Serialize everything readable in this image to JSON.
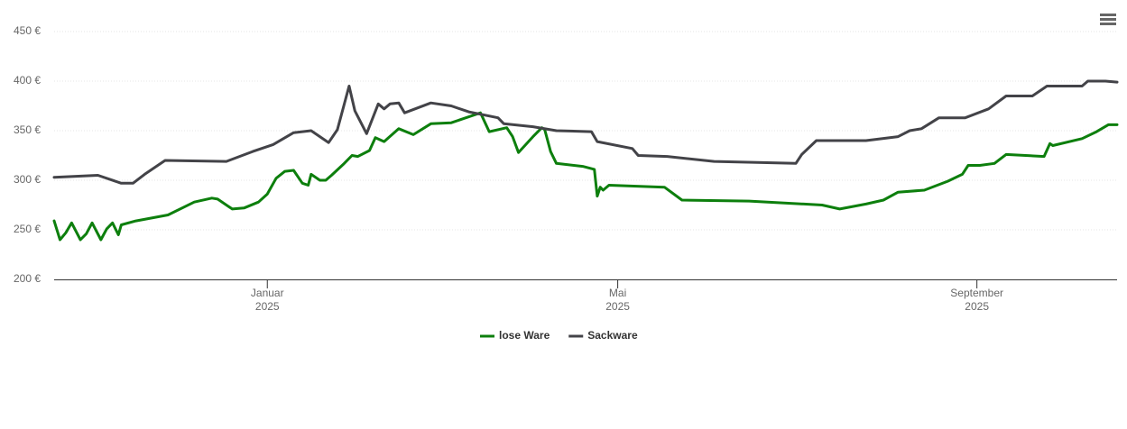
{
  "chart_data": {
    "type": "line",
    "xlim": [
      "2024-10-20",
      "2025-10-19"
    ],
    "ylim": [
      200,
      450
    ],
    "yticks": [
      {
        "value": 200,
        "label": "200 €"
      },
      {
        "value": 250,
        "label": "250 €"
      },
      {
        "value": 300,
        "label": "300 €"
      },
      {
        "value": 350,
        "label": "350 €"
      },
      {
        "value": 400,
        "label": "400 €"
      },
      {
        "value": 450,
        "label": "450 €"
      }
    ],
    "xticks": [
      {
        "value": "2025-01-01",
        "label": [
          "Januar",
          "2025"
        ]
      },
      {
        "value": "2025-05-01",
        "label": [
          "Mai",
          "2025"
        ]
      },
      {
        "value": "2025-09-01",
        "label": [
          "September",
          "2025"
        ]
      }
    ],
    "grid": true,
    "legend": "bottom",
    "series": [
      {
        "name": "lose Ware",
        "color": "#0d7f0d",
        "x": [
          "2024-10-20",
          "2024-10-22",
          "2024-10-24",
          "2024-10-26",
          "2024-10-29",
          "2024-10-31",
          "2024-11-02",
          "2024-11-05",
          "2024-11-07",
          "2024-11-09",
          "2024-11-11",
          "2024-11-12",
          "2024-11-17",
          "2024-11-28",
          "2024-12-07",
          "2024-12-13",
          "2024-12-15",
          "2024-12-20",
          "2024-12-24",
          "2024-12-29",
          "2025-01-01",
          "2025-01-04",
          "2025-01-07",
          "2025-01-10",
          "2025-01-13",
          "2025-01-15",
          "2025-01-16",
          "2025-01-19",
          "2025-01-21",
          "2025-01-23",
          "2025-01-27",
          "2025-01-30",
          "2025-02-01",
          "2025-02-05",
          "2025-02-07",
          "2025-02-10",
          "2025-02-15",
          "2025-02-20",
          "2025-02-26",
          "2025-03-05",
          "2025-03-10",
          "2025-03-15",
          "2025-03-18",
          "2025-03-24",
          "2025-03-26",
          "2025-03-28",
          "2025-04-02",
          "2025-04-05",
          "2025-04-06",
          "2025-04-08",
          "2025-04-10",
          "2025-04-19",
          "2025-04-23",
          "2025-04-24",
          "2025-04-25",
          "2025-04-26",
          "2025-04-28",
          "2025-05-17",
          "2025-05-23",
          "2025-06-15",
          "2025-07-10",
          "2025-07-16",
          "2025-07-25",
          "2025-07-31",
          "2025-08-05",
          "2025-08-14",
          "2025-08-22",
          "2025-08-27",
          "2025-08-29",
          "2025-09-02",
          "2025-09-07",
          "2025-09-11",
          "2025-09-24",
          "2025-09-26",
          "2025-09-27",
          "2025-10-07",
          "2025-10-12",
          "2025-10-16",
          "2025-10-19"
        ],
        "values": [
          259,
          240,
          247,
          257,
          240,
          246,
          257,
          240,
          251,
          257,
          245,
          255,
          259,
          265,
          278,
          282,
          281,
          271,
          272,
          278,
          286,
          302,
          309,
          310,
          297,
          295,
          306,
          300,
          300,
          305,
          316,
          325,
          324,
          330,
          343,
          339,
          352,
          346,
          357,
          358,
          363,
          368,
          349,
          353,
          344,
          328,
          344,
          353,
          351,
          329,
          317,
          314,
          311,
          284,
          293,
          290,
          295,
          293,
          280,
          279,
          275,
          271,
          276,
          280,
          288,
          290,
          299,
          306,
          315,
          315,
          317,
          326,
          324,
          337,
          335,
          342,
          349,
          356,
          356
        ]
      },
      {
        "name": "Sackware",
        "color": "#434348",
        "x": [
          "2024-10-20",
          "2024-11-04",
          "2024-11-12",
          "2024-11-16",
          "2024-11-20",
          "2024-11-27",
          "2024-12-18",
          "2024-12-27",
          "2025-01-03",
          "2025-01-10",
          "2025-01-16",
          "2025-01-22",
          "2025-01-25",
          "2025-01-29",
          "2025-01-31",
          "2025-02-04",
          "2025-02-08",
          "2025-02-10",
          "2025-02-12",
          "2025-02-15",
          "2025-02-17",
          "2025-02-26",
          "2025-03-05",
          "2025-03-11",
          "2025-03-21",
          "2025-03-23",
          "2025-04-02",
          "2025-04-10",
          "2025-04-22",
          "2025-04-24",
          "2025-05-06",
          "2025-05-08",
          "2025-05-18",
          "2025-06-03",
          "2025-07-01",
          "2025-07-03",
          "2025-07-08",
          "2025-07-25",
          "2025-08-05",
          "2025-08-09",
          "2025-08-13",
          "2025-08-19",
          "2025-08-28",
          "2025-09-05",
          "2025-09-11",
          "2025-09-20",
          "2025-09-25",
          "2025-10-07",
          "2025-10-09",
          "2025-10-15",
          "2025-10-19"
        ],
        "values": [
          303,
          305,
          297,
          297,
          306,
          320,
          319,
          329,
          336,
          348,
          350,
          338,
          351,
          395,
          370,
          347,
          377,
          372,
          377,
          378,
          368,
          378,
          375,
          369,
          363,
          357,
          354,
          350,
          349,
          339,
          332,
          325,
          324,
          319,
          317,
          326,
          340,
          340,
          344,
          350,
          352,
          363,
          363,
          372,
          385,
          385,
          395,
          395,
          400,
          400,
          399
        ]
      }
    ]
  }
}
